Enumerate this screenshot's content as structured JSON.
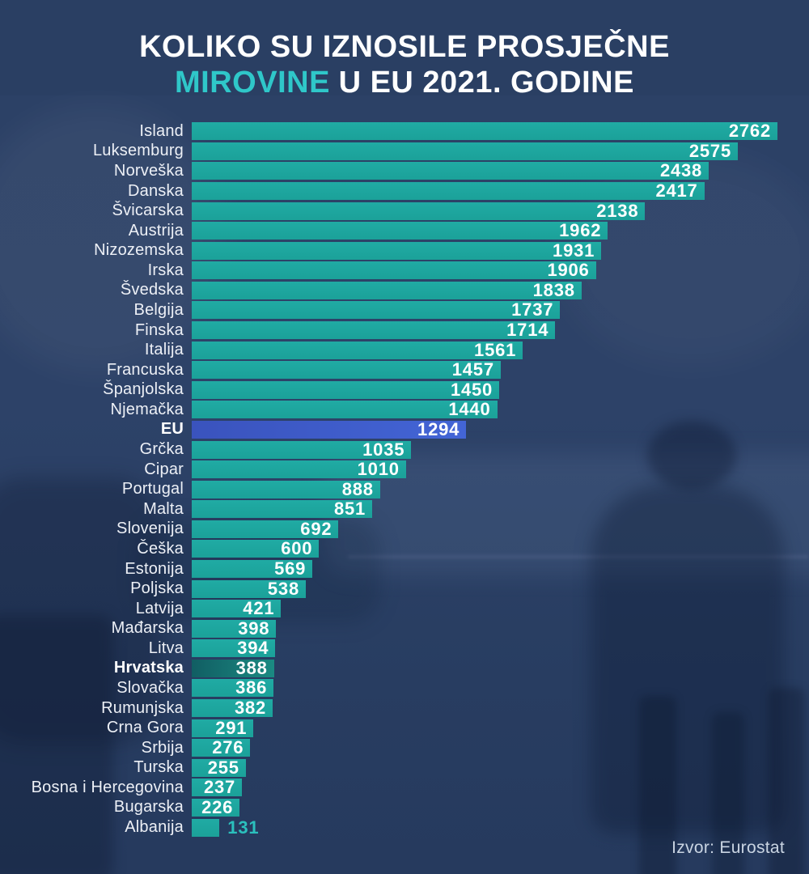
{
  "title": {
    "line1": "KOLIKO SU IZNOSILE PROSJEČNE",
    "highlight": "MIROVINE",
    "line2_rest": "U EU 2021. GODINE"
  },
  "source": "Izvor: Eurostat",
  "colors": {
    "background": "#2b4065",
    "bar_teal": "#1fa9a2",
    "bar_eu_blue": "#3f5fce",
    "bar_croatia_dark_teal": "#136a68",
    "title_highlight": "#2fc7c9",
    "value_inside": "#ffffff",
    "value_outside": "#2bc0bd"
  },
  "chart_data": {
    "type": "bar",
    "orientation": "horizontal",
    "title": "KOLIKO SU IZNOSILE PROSJEČNE MIROVINE U EU 2021. GODINE",
    "xlim": [
      0,
      2762
    ],
    "grid": false,
    "legend": false,
    "rows": [
      {
        "label": "Island",
        "value": 2762,
        "style": "default",
        "value_position": "inside"
      },
      {
        "label": "Luksemburg",
        "value": 2575,
        "style": "default",
        "value_position": "inside"
      },
      {
        "label": "Norveška",
        "value": 2438,
        "style": "default",
        "value_position": "inside"
      },
      {
        "label": "Danska",
        "value": 2417,
        "style": "default",
        "value_position": "inside"
      },
      {
        "label": "Švicarska",
        "value": 2138,
        "style": "default",
        "value_position": "inside"
      },
      {
        "label": "Austrija",
        "value": 1962,
        "style": "default",
        "value_position": "inside"
      },
      {
        "label": "Nizozemska",
        "value": 1931,
        "style": "default",
        "value_position": "inside"
      },
      {
        "label": "Irska",
        "value": 1906,
        "style": "default",
        "value_position": "inside"
      },
      {
        "label": "Švedska",
        "value": 1838,
        "style": "default",
        "value_position": "inside"
      },
      {
        "label": "Belgija",
        "value": 1737,
        "style": "default",
        "value_position": "inside"
      },
      {
        "label": "Finska",
        "value": 1714,
        "style": "default",
        "value_position": "inside"
      },
      {
        "label": "Italija",
        "value": 1561,
        "style": "default",
        "value_position": "inside"
      },
      {
        "label": "Francuska",
        "value": 1457,
        "style": "default",
        "value_position": "inside"
      },
      {
        "label": "Španjolska",
        "value": 1450,
        "style": "default",
        "value_position": "inside"
      },
      {
        "label": "Njemačka",
        "value": 1440,
        "style": "default",
        "value_position": "inside"
      },
      {
        "label": "EU",
        "value": 1294,
        "style": "eu",
        "value_position": "inside"
      },
      {
        "label": "Grčka",
        "value": 1035,
        "style": "default",
        "value_position": "inside"
      },
      {
        "label": "Cipar",
        "value": 1010,
        "style": "default",
        "value_position": "inside"
      },
      {
        "label": "Portugal",
        "value": 888,
        "style": "default",
        "value_position": "inside"
      },
      {
        "label": "Malta",
        "value": 851,
        "style": "default",
        "value_position": "inside"
      },
      {
        "label": "Slovenija",
        "value": 692,
        "style": "default",
        "value_position": "inside"
      },
      {
        "label": "Češka",
        "value": 600,
        "style": "default",
        "value_position": "inside"
      },
      {
        "label": "Estonija",
        "value": 569,
        "style": "default",
        "value_position": "inside"
      },
      {
        "label": "Poljska",
        "value": 538,
        "style": "default",
        "value_position": "inside"
      },
      {
        "label": "Latvija",
        "value": 421,
        "style": "default",
        "value_position": "inside"
      },
      {
        "label": "Mađarska",
        "value": 398,
        "style": "default",
        "value_position": "inside"
      },
      {
        "label": "Litva",
        "value": 394,
        "style": "default",
        "value_position": "inside"
      },
      {
        "label": "Hrvatska",
        "value": 388,
        "style": "croatia",
        "value_position": "inside"
      },
      {
        "label": "Slovačka",
        "value": 386,
        "style": "default",
        "value_position": "inside"
      },
      {
        "label": "Rumunjska",
        "value": 382,
        "style": "default",
        "value_position": "inside"
      },
      {
        "label": "Crna Gora",
        "value": 291,
        "style": "default",
        "value_position": "inside"
      },
      {
        "label": "Srbija",
        "value": 276,
        "style": "default",
        "value_position": "inside"
      },
      {
        "label": "Turska",
        "value": 255,
        "style": "default",
        "value_position": "inside"
      },
      {
        "label": "Bosna i Hercegovina",
        "value": 237,
        "style": "default",
        "value_position": "inside"
      },
      {
        "label": "Bugarska",
        "value": 226,
        "style": "default",
        "value_position": "inside"
      },
      {
        "label": "Albanija",
        "value": 131,
        "style": "default",
        "value_position": "outside"
      }
    ]
  }
}
